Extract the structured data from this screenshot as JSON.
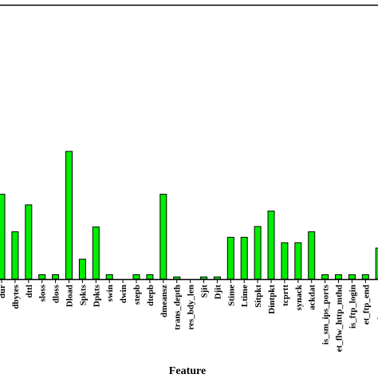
{
  "chart_data": {
    "type": "bar",
    "xlabel": "Feature",
    "ylabel": "",
    "title": "",
    "bar_color": "#00ee00",
    "bar_stroke": "#000000",
    "ylim": [
      0,
      0.16
    ],
    "grid": false,
    "categories": [
      "dur",
      "dbytes",
      "dttl",
      "sloss",
      "dloss",
      "Dload",
      "Spkts",
      "Dpkts",
      "swin",
      "dwin",
      "stcpb",
      "dtcpb",
      "dmeansz",
      "trans_depth",
      "res_bdy_len",
      "Sjit",
      "Djit",
      "Stime",
      "Ltime",
      "Sintpkt",
      "Dintpkt",
      "tcprtt",
      "synack",
      "ackdat",
      "is_sm_ips_ports",
      "ct_flw_http_mthd",
      "is_ftp_login",
      "ct_ftp_cmd",
      "ct_srv_src"
    ],
    "tick_labels": [
      "dur",
      "dbytes",
      "dttl",
      "sloss",
      "dloss",
      "Dload",
      "Spkts",
      "Dpkts",
      "swin",
      "dwin",
      "stepb",
      "dtepb",
      "dmeansz",
      "trans_depth",
      "res_bdy_len",
      "Sjit",
      "Djit",
      "Stime",
      "Ltime",
      "Sitpkt",
      "Dintpkt",
      "tcprtt",
      "synack",
      "ackdat",
      "is_sm_ips_ports",
      "et_flw_http_mthd",
      "is_ftp_login",
      "et_ftp_end",
      "et_srv_srv"
    ],
    "values": [
      0.0495,
      0.0276,
      0.0433,
      0.0026,
      0.0026,
      0.0745,
      0.0116,
      0.0304,
      0.0026,
      0.0,
      0.0026,
      0.0026,
      0.0495,
      0.0013,
      0.0,
      0.0013,
      0.0013,
      0.0244,
      0.0244,
      0.0307,
      0.0397,
      0.0212,
      0.0212,
      0.0276,
      0.0026,
      0.0026,
      0.0026,
      0.0026,
      0.0181
    ]
  }
}
